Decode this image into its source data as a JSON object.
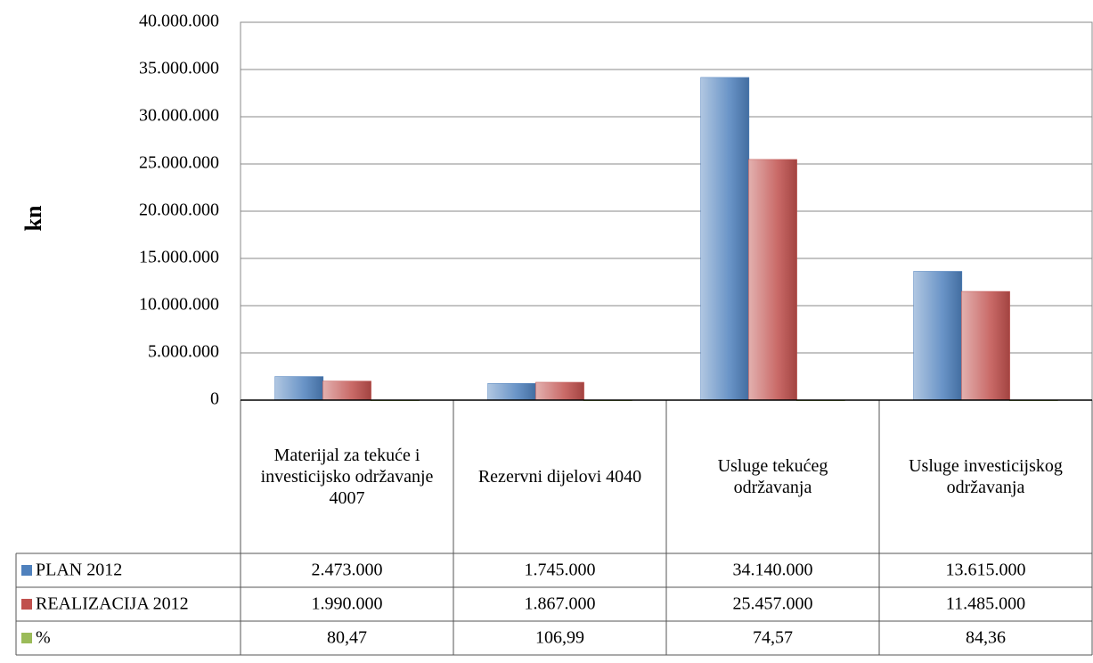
{
  "chart_data": {
    "type": "bar",
    "y_label": "kn",
    "categories": [
      "Materijal za tekuće i investicijsko održavanje 4007",
      "Rezervni dijelovi 4040",
      "Usluge tekućeg održavanja",
      "Usluge investicijskog održavanja"
    ],
    "series": [
      {
        "name": "PLAN 2012",
        "color": "#4f81bd",
        "values": [
          2473000,
          1745000,
          34140000,
          13615000
        ],
        "value_labels": [
          "2.473.000",
          "1.745.000",
          "34.140.000",
          "13.615.000"
        ]
      },
      {
        "name": "REALIZACIJA 2012",
        "color": "#c0504d",
        "values": [
          1990000,
          1867000,
          25457000,
          11485000
        ],
        "value_labels": [
          "1.990.000",
          "1.867.000",
          "25.457.000",
          "11.485.000"
        ]
      },
      {
        "name": "%",
        "color": "#9bbb59",
        "values": [
          80.47,
          106.99,
          74.57,
          84.36
        ],
        "value_labels": [
          "80,47",
          "106,99",
          "74,57",
          "84,36"
        ]
      }
    ],
    "ylim": [
      0,
      40000000
    ],
    "yticks": [
      0,
      {
        "value": 5000000,
        "label": "5.000.000"
      },
      {
        "value": 10000000,
        "label": "10.000.000"
      },
      {
        "value": 15000000,
        "label": "15.000.000"
      },
      {
        "value": 20000000,
        "label": "20.000.000"
      },
      {
        "value": 25000000,
        "label": "25.000.000"
      },
      {
        "value": 30000000,
        "label": "30.000.000"
      },
      {
        "value": 35000000,
        "label": "35.000.000"
      },
      {
        "value": 40000000,
        "label": "40.000.000"
      }
    ],
    "grid": true
  }
}
